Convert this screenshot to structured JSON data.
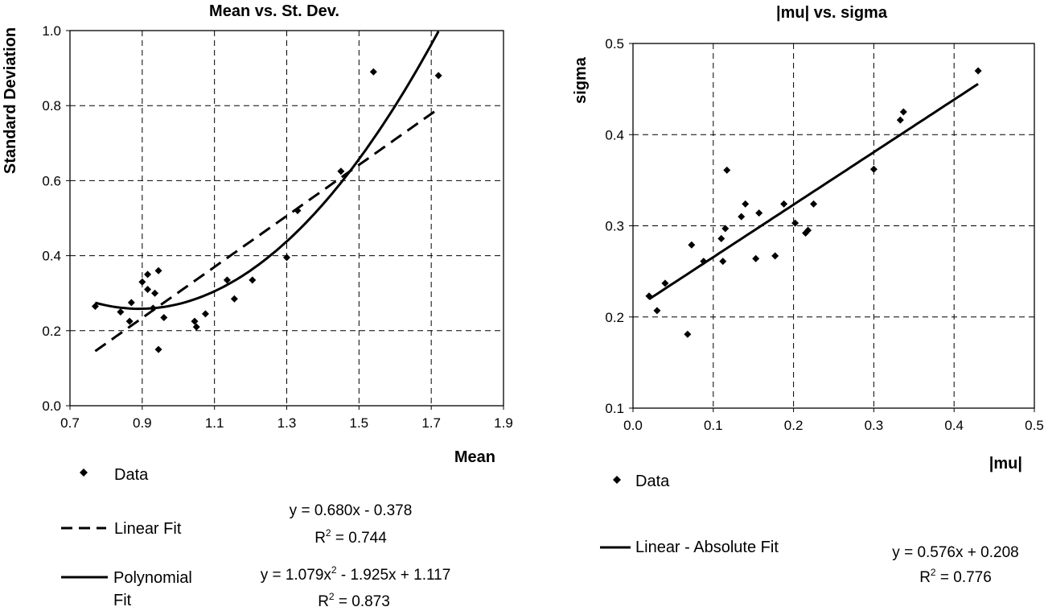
{
  "chart_data": [
    {
      "type": "scatter",
      "title": "Mean vs. St. Dev.",
      "xlabel": "Mean",
      "ylabel": "Standard Deviation",
      "xlim": [
        0.7,
        1.9
      ],
      "ylim": [
        0.0,
        1.0
      ],
      "x_ticks": [
        "0.7",
        "0.9",
        "1.1",
        "1.3",
        "1.5",
        "1.7",
        "1.9"
      ],
      "y_ticks": [
        "0.0",
        "0.2",
        "0.4",
        "0.6",
        "0.8",
        "1.0"
      ],
      "grid": true,
      "series": [
        {
          "name": "Data",
          "kind": "points",
          "points": [
            [
              0.77,
              0.265
            ],
            [
              0.84,
              0.25
            ],
            [
              0.865,
              0.225
            ],
            [
              0.87,
              0.275
            ],
            [
              0.9,
              0.33
            ],
            [
              0.915,
              0.35
            ],
            [
              0.915,
              0.31
            ],
            [
              0.93,
              0.26
            ],
            [
              0.935,
              0.3
            ],
            [
              0.945,
              0.36
            ],
            [
              0.945,
              0.15
            ],
            [
              0.96,
              0.235
            ],
            [
              1.045,
              0.225
            ],
            [
              1.05,
              0.21
            ],
            [
              1.075,
              0.245
            ],
            [
              1.135,
              0.335
            ],
            [
              1.155,
              0.285
            ],
            [
              1.205,
              0.335
            ],
            [
              1.3,
              0.395
            ],
            [
              1.33,
              0.52
            ],
            [
              1.45,
              0.625
            ],
            [
              1.54,
              0.89
            ],
            [
              1.72,
              0.88
            ]
          ]
        },
        {
          "name": "Linear Fit",
          "kind": "linear",
          "coef": [
            0.68,
            -0.378
          ],
          "x_range": [
            0.77,
            1.72
          ],
          "equation": "y = 0.680x - 0.378",
          "r2_label": "R",
          "r2_value": " = 0.744"
        },
        {
          "name": "Polynomial Fit",
          "name_line1": "Polynomial",
          "name_line2": "Fit",
          "kind": "poly2",
          "coef": [
            1.079,
            -1.925,
            1.117
          ],
          "x_range": [
            0.77,
            1.72
          ],
          "equation_pre": "y = 1.079x",
          "equation_post": " - 1.925x + 1.117",
          "r2_label": "R",
          "r2_value": " = 0.873"
        }
      ]
    },
    {
      "type": "scatter",
      "title": "|mu| vs. sigma",
      "xlabel": "|mu|",
      "ylabel": "sigma",
      "xlim": [
        0.0,
        0.5
      ],
      "ylim": [
        0.1,
        0.5
      ],
      "x_ticks": [
        "0.0",
        "0.1",
        "0.2",
        "0.3",
        "0.4",
        "0.5"
      ],
      "y_ticks": [
        "0.1",
        "0.2",
        "0.3",
        "0.4",
        "0.5"
      ],
      "grid": true,
      "series": [
        {
          "name": "Data",
          "kind": "points",
          "points": [
            [
              0.02,
              0.223
            ],
            [
              0.03,
              0.207
            ],
            [
              0.04,
              0.237
            ],
            [
              0.068,
              0.181
            ],
            [
              0.073,
              0.279
            ],
            [
              0.088,
              0.261
            ],
            [
              0.11,
              0.286
            ],
            [
              0.112,
              0.261
            ],
            [
              0.115,
              0.297
            ],
            [
              0.117,
              0.361
            ],
            [
              0.135,
              0.31
            ],
            [
              0.14,
              0.324
            ],
            [
              0.153,
              0.264
            ],
            [
              0.157,
              0.314
            ],
            [
              0.177,
              0.267
            ],
            [
              0.188,
              0.324
            ],
            [
              0.202,
              0.303
            ],
            [
              0.215,
              0.292
            ],
            [
              0.218,
              0.295
            ],
            [
              0.225,
              0.324
            ],
            [
              0.3,
              0.362
            ],
            [
              0.333,
              0.416
            ],
            [
              0.337,
              0.425
            ],
            [
              0.43,
              0.47
            ]
          ]
        },
        {
          "name": "Linear - Absolute Fit",
          "kind": "linear",
          "coef": [
            0.576,
            0.208
          ],
          "x_range": [
            0.02,
            0.43
          ],
          "equation": "y = 0.576x + 0.208",
          "r2_label": "R",
          "r2_value": " = 0.776"
        }
      ]
    }
  ]
}
